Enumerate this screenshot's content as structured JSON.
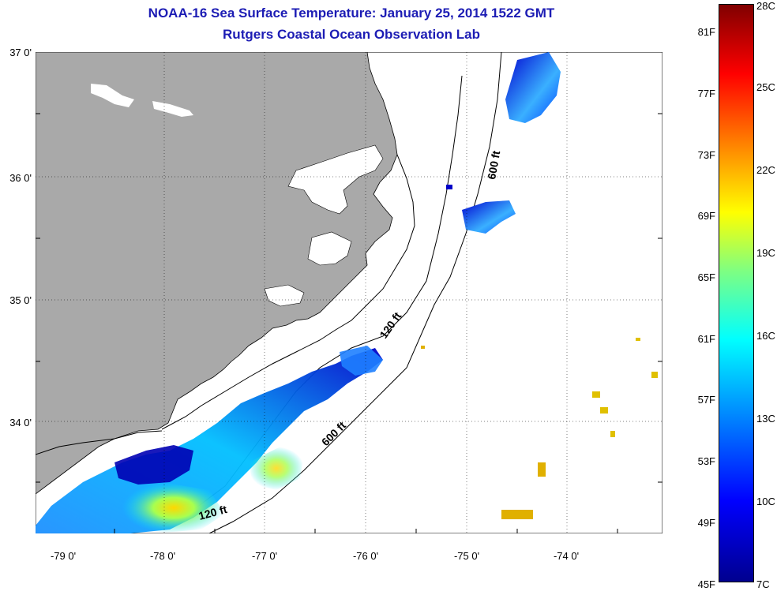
{
  "title": "NOAA-16 Sea Surface Temperature:  January 25, 2014 1522 GMT",
  "subtitle": "Rutgers Coastal Ocean Observation Lab",
  "lat_labels": [
    "37 0'",
    "36 0'",
    "35 0'",
    "34 0'"
  ],
  "lon_labels": [
    "-79 0'",
    "-78 0'",
    "-77 0'",
    "-76 0'",
    "-75 0'",
    "-74 0'"
  ],
  "contours": [
    "600 ft",
    "120 ft",
    "600 ft",
    "120 ft"
  ],
  "colorbar": {
    "fahrenheit": [
      "81F",
      "77F",
      "73F",
      "69F",
      "65F",
      "61F",
      "57F",
      "53F",
      "49F",
      "45F"
    ],
    "celsius": [
      "28C",
      "25C",
      "22C",
      "19C",
      "16C",
      "13C",
      "10C",
      "7C"
    ]
  },
  "colors": {
    "land": "#a9a9a9",
    "title": "#1c1cb4",
    "ocean": "#ffffff"
  }
}
